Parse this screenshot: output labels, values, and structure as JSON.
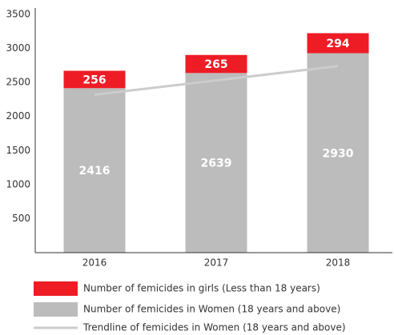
{
  "chart_data": {
    "type": "stacked_bar",
    "categories": [
      "2016",
      "2017",
      "2018"
    ],
    "series": [
      {
        "name": "Number of femicides in Women (18 years and above)",
        "color": "#bcbcbc",
        "values": [
          2416,
          2639,
          2930
        ]
      },
      {
        "name": "Number of femicides in girls (Less than 18 years)",
        "color": "#ee1c25",
        "values": [
          256,
          265,
          294
        ]
      }
    ],
    "trendline": {
      "name": "Trendline of femicides in Women (18 years and above)",
      "color": "#cccccc",
      "values": [
        2320,
        2530,
        2740
      ]
    },
    "ylim": [
      0,
      3500
    ],
    "yticks": [
      500,
      1000,
      1500,
      2000,
      2500,
      3000,
      3500
    ]
  }
}
